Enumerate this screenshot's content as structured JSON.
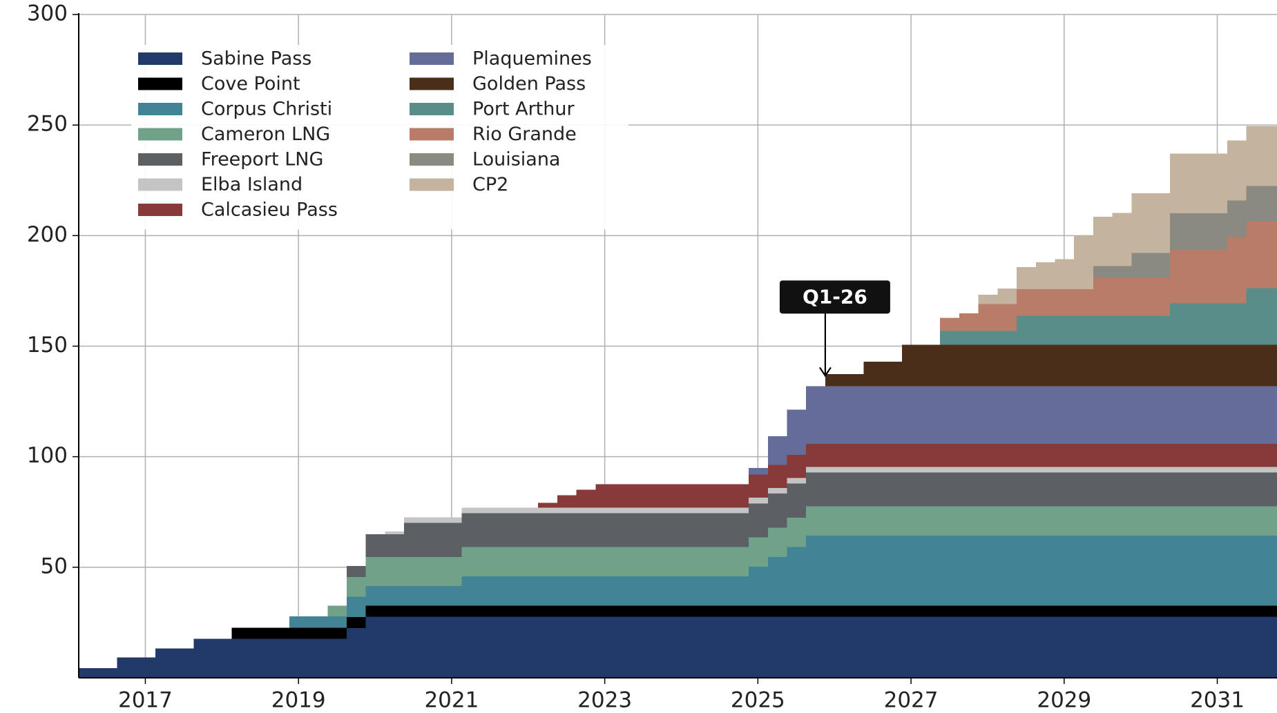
{
  "chart_data": {
    "type": "stacked_step_area",
    "x": [
      2016.13,
      2016.63,
      2017.13,
      2017.63,
      2018.13,
      2018.88,
      2019.38,
      2019.63,
      2019.88,
      2020.13,
      2020.38,
      2021.13,
      2022.13,
      2022.38,
      2022.63,
      2022.88,
      2024.88,
      2025.13,
      2025.38,
      2025.63,
      2025.88,
      2026.38,
      2026.88,
      2027.38,
      2027.63,
      2027.88,
      2028.13,
      2028.38,
      2028.63,
      2028.88,
      2029.13,
      2029.38,
      2029.63,
      2029.88,
      2030.38,
      2031.13,
      2031.38
    ],
    "series": [
      {
        "name": "Sabine Pass",
        "color": "#223a6a",
        "values": [
          4.4,
          9.2,
          13.2,
          17.6,
          17.6,
          17.6,
          17.6,
          22.4,
          27.6,
          27.6,
          27.6,
          27.6,
          27.6,
          27.6,
          27.6,
          27.6,
          27.6,
          27.6,
          27.6,
          27.6,
          27.6,
          27.6,
          27.6,
          27.6,
          27.6,
          27.6,
          27.6,
          27.6,
          27.6,
          27.6,
          27.6,
          27.6,
          27.6,
          27.6,
          27.6,
          27.6,
          27.6
        ]
      },
      {
        "name": "Cove Point",
        "color": "#000000",
        "values": [
          0,
          0,
          0,
          0,
          5.1,
          5.1,
          5.1,
          5.1,
          5.1,
          5.1,
          5.1,
          5.1,
          5.1,
          5.1,
          5.1,
          5.1,
          5.1,
          5.1,
          5.1,
          5.1,
          5.1,
          5.1,
          5.1,
          5.1,
          5.1,
          5.1,
          5.1,
          5.1,
          5.1,
          5.1,
          5.1,
          5.1,
          5.1,
          5.1,
          5.1,
          5.1,
          5.1
        ]
      },
      {
        "name": "Corpus Christi",
        "color": "#428496",
        "values": [
          0,
          0,
          0,
          0,
          0,
          5.1,
          5.1,
          9.2,
          8.8,
          8.8,
          8.8,
          13.2,
          13.2,
          13.2,
          13.2,
          13.2,
          17.6,
          22,
          26.5,
          31.6,
          31.6,
          31.6,
          31.6,
          31.6,
          31.6,
          31.6,
          31.6,
          31.6,
          31.6,
          31.6,
          31.6,
          31.6,
          31.6,
          31.6,
          31.6,
          31.6,
          31.6
        ]
      },
      {
        "name": "Cameron LNG",
        "color": "#6fa288",
        "values": [
          0,
          0,
          0,
          0,
          0,
          0,
          4.8,
          8.8,
          13.2,
          13.2,
          13.2,
          13.2,
          13.2,
          13.2,
          13.2,
          13.2,
          13.2,
          13.2,
          13.2,
          13.2,
          13.2,
          13.2,
          13.2,
          13.2,
          13.2,
          13.2,
          13.2,
          13.2,
          13.2,
          13.2,
          13.2,
          13.2,
          13.2,
          13.2,
          13.2,
          13.2,
          13.2
        ]
      },
      {
        "name": "Freeport LNG",
        "color": "#5c5f63",
        "values": [
          0,
          0,
          0,
          0,
          0,
          0,
          0,
          5.1,
          10.3,
          10.3,
          15.4,
          15.4,
          15.4,
          15.4,
          15.4,
          15.4,
          15.4,
          15.4,
          15.4,
          15.4,
          15.4,
          15.4,
          15.4,
          15.4,
          15.4,
          15.4,
          15.4,
          15.4,
          15.4,
          15.4,
          15.4,
          15.4,
          15.4,
          15.4,
          15.4,
          15.4,
          15.4
        ]
      },
      {
        "name": "Elba Island",
        "color": "#c4c4c4",
        "values": [
          0,
          0,
          0,
          0,
          0,
          0,
          0,
          0,
          0,
          1.2,
          2.5,
          2.5,
          2.5,
          2.5,
          2.5,
          2.5,
          2.5,
          2.5,
          2.5,
          2.5,
          2.5,
          2.5,
          2.5,
          2.5,
          2.5,
          2.5,
          2.5,
          2.5,
          2.5,
          2.5,
          2.5,
          2.5,
          2.5,
          2.5,
          2.5,
          2.5,
          2.5
        ]
      },
      {
        "name": "Calcasieu Pass",
        "color": "#873a37",
        "values": [
          0,
          0,
          0,
          0,
          0,
          0,
          0,
          0,
          0,
          0,
          0,
          0,
          2.2,
          5.5,
          8,
          10.5,
          10.5,
          10.5,
          10.5,
          10.5,
          10.5,
          10.5,
          10.5,
          10.5,
          10.5,
          10.5,
          10.5,
          10.5,
          10.5,
          10.5,
          10.5,
          10.5,
          10.5,
          10.5,
          10.5,
          10.5,
          10.5
        ]
      },
      {
        "name": "Plaquemines",
        "color": "#656c99",
        "values": [
          0,
          0,
          0,
          0,
          0,
          0,
          0,
          0,
          0,
          0,
          0,
          0,
          0,
          0,
          0,
          0,
          3,
          13,
          20.5,
          26,
          26,
          26,
          26,
          26,
          26,
          26,
          26,
          26,
          26,
          26,
          26,
          26,
          26,
          26,
          26,
          26,
          26
        ]
      },
      {
        "name": "Golden Pass",
        "color": "#4a2e1a",
        "values": [
          0,
          0,
          0,
          0,
          0,
          0,
          0,
          0,
          0,
          0,
          0,
          0,
          0,
          0,
          0,
          0,
          0,
          0,
          0,
          0,
          5.5,
          11,
          18.7,
          18.7,
          18.7,
          18.7,
          18.7,
          18.7,
          18.7,
          18.7,
          18.7,
          18.7,
          18.7,
          18.7,
          18.7,
          18.7,
          18.7
        ]
      },
      {
        "name": "Port Arthur",
        "color": "#588d89",
        "values": [
          0,
          0,
          0,
          0,
          0,
          0,
          0,
          0,
          0,
          0,
          0,
          0,
          0,
          0,
          0,
          0,
          0,
          0,
          0,
          0,
          0,
          0,
          0,
          6.3,
          6.3,
          6.3,
          6.3,
          13.2,
          13.2,
          13.2,
          13.2,
          13.2,
          13.2,
          13.2,
          18.7,
          18.7,
          25.7
        ]
      },
      {
        "name": "Rio Grande",
        "color": "#b87c69",
        "values": [
          0,
          0,
          0,
          0,
          0,
          0,
          0,
          0,
          0,
          0,
          0,
          0,
          0,
          0,
          0,
          0,
          0,
          0,
          0,
          0,
          0,
          0,
          0,
          5.9,
          8,
          12.1,
          12.1,
          12,
          12,
          12,
          12,
          17.3,
          17.3,
          17.3,
          24.3,
          30,
          30
        ]
      },
      {
        "name": "Louisiana",
        "color": "#8a8a80",
        "values": [
          0,
          0,
          0,
          0,
          0,
          0,
          0,
          0,
          0,
          0,
          0,
          0,
          0,
          0,
          0,
          0,
          0,
          0,
          0,
          0,
          0,
          0,
          0,
          0,
          0,
          0,
          0,
          0,
          0,
          0,
          0,
          5.1,
          5.1,
          11,
          16.5,
          16.5,
          16.2
        ]
      },
      {
        "name": "CP2",
        "color": "#c4b39e",
        "values": [
          0,
          0,
          0,
          0,
          0,
          0,
          0,
          0,
          0,
          0,
          0,
          0,
          0,
          0,
          0,
          0,
          0,
          0,
          0,
          0,
          0,
          0,
          0,
          0,
          0,
          4.2,
          7.1,
          9.9,
          12.1,
          13.5,
          24.2,
          22.3,
          24.1,
          27,
          27,
          27.2,
          27.1
        ]
      }
    ],
    "xlim": [
      2016.13,
      2031.78
    ],
    "xticks": [
      2017,
      2019,
      2021,
      2023,
      2025,
      2027,
      2029,
      2031
    ],
    "ylim": [
      0,
      300
    ],
    "yticks": [
      50,
      100,
      150,
      200,
      250,
      300
    ],
    "grid": true,
    "legend": "upper left",
    "annotation": {
      "text": "Q1-26",
      "x": 2025.88,
      "y": 136
    }
  }
}
